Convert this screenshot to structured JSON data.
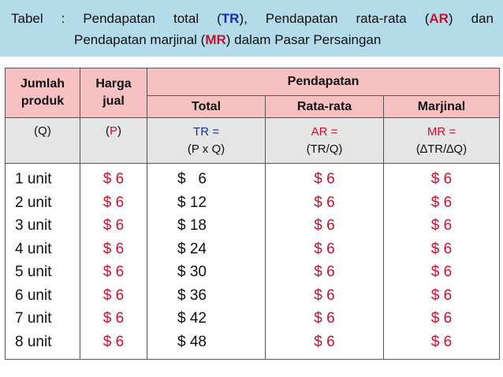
{
  "caption": {
    "line1": {
      "words": [
        "Tabel",
        ":",
        "Pendapatan",
        "total",
        "(TR),",
        "Pendapatan",
        "rata-rata",
        "(AR)",
        "dan"
      ],
      "tr": "TR",
      "ar": "AR"
    },
    "line2": {
      "prefix": "Pendapatan marjinal (",
      "mr": "MR",
      "suffix": ") dalam Pasar Persaingan"
    }
  },
  "table": {
    "headers": {
      "jumlah": "Jumlah",
      "produk": "produk",
      "harga": "Harga",
      "jual": "jual",
      "pendapatan": "Pendapatan",
      "total": "Total",
      "rata_rata": "Rata-rata",
      "marjinal": "Marjinal"
    },
    "symbols": {
      "q": "(Q)",
      "p_open": "(",
      "p": "P",
      "p_close": ")",
      "tr_label": "TR =",
      "tr_formula": "(P x Q)",
      "ar_label": "AR =",
      "ar_formula": "(TR/Q)",
      "mr_label": "MR =",
      "mr_formula": "(∆TR/∆Q)"
    },
    "rows": [
      {
        "qty": "1 unit",
        "price": "$ 6",
        "total": "$   6",
        "ar": "$ 6",
        "mr": "$ 6"
      },
      {
        "qty": "2 unit",
        "price": "$ 6",
        "total": "$ 12",
        "ar": "$ 6",
        "mr": "$ 6"
      },
      {
        "qty": "3 unit",
        "price": "$ 6",
        "total": "$ 18",
        "ar": "$ 6",
        "mr": "$ 6"
      },
      {
        "qty": "4 unit",
        "price": "$ 6",
        "total": "$ 24",
        "ar": "$ 6",
        "mr": "$ 6"
      },
      {
        "qty": "5 unit",
        "price": "$ 6",
        "total": "$ 30",
        "ar": "$ 6",
        "mr": "$ 6"
      },
      {
        "qty": "6 unit",
        "price": "$ 6",
        "total": "$ 36",
        "ar": "$ 6",
        "mr": "$ 6"
      },
      {
        "qty": "7 unit",
        "price": "$ 6",
        "total": "$ 42",
        "ar": "$ 6",
        "mr": "$ 6"
      },
      {
        "qty": "8 unit",
        "price": "$ 6",
        "total": "$ 48",
        "ar": "$ 6",
        "mr": "$ 6"
      }
    ]
  },
  "colors": {
    "caption_bg": "#b3dbe9",
    "header_bg": "#f7c1c1",
    "subheader_bg": "#e5e5e5",
    "blue": "#1a2aa8",
    "red": "#c8102e"
  }
}
